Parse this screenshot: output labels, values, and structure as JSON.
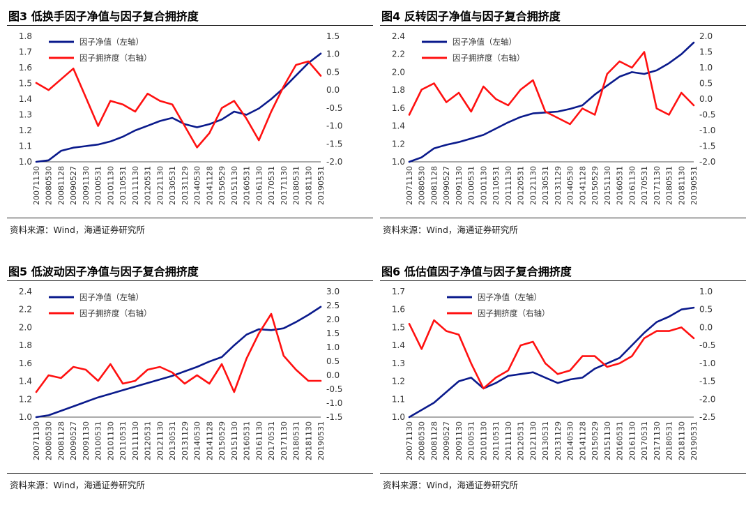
{
  "panels": [
    {
      "title": "图3  低换手因子净值与因子复合拥挤度",
      "source": "资料来源：Wind，海通证券研究所"
    },
    {
      "title": "图4  反转因子净值与因子复合拥挤度",
      "source": "资料来源：Wind，海通证券研究所"
    },
    {
      "title": "图5  低波动因子净值与因子复合拥挤度",
      "source": "资料来源：Wind，海通证券研究所"
    },
    {
      "title": "图6  低估值因子净值与因子复合拥挤度",
      "source": "资料来源：Wind，海通证券研究所"
    }
  ],
  "colors": {
    "net_value": "#0a1a8c",
    "crowding": "#ff1010"
  },
  "chart_data": [
    {
      "type": "line",
      "title": "图3  低换手因子净值与因子复合拥挤度",
      "x_tick_labels": [
        "20071130",
        "20080530",
        "20081128",
        "20090527",
        "20091130",
        "20100531",
        "20101130",
        "20110531",
        "20111130",
        "20120531",
        "20121130",
        "20130531",
        "20131129",
        "20140530",
        "20141128",
        "20150529",
        "20151130",
        "20160531",
        "20161130",
        "20170531",
        "20171130",
        "20180531",
        "20181130",
        "20190531"
      ],
      "left_axis": {
        "ylim": [
          1.0,
          1.8
        ],
        "ticks": [
          "1.0",
          "1.1",
          "1.2",
          "1.3",
          "1.4",
          "1.5",
          "1.6",
          "1.7",
          "1.8"
        ]
      },
      "right_axis": {
        "ylim": [
          -2.0,
          1.5
        ],
        "ticks": [
          "-2.0",
          "-1.5",
          "-1.0",
          "-0.5",
          "0.0",
          "0.5",
          "1.0",
          "1.5"
        ]
      },
      "legend_position": "top-left",
      "series": [
        {
          "name": "因子净值（左轴）",
          "axis": "left",
          "values": [
            1.0,
            1.01,
            1.07,
            1.09,
            1.1,
            1.11,
            1.13,
            1.16,
            1.2,
            1.23,
            1.26,
            1.28,
            1.24,
            1.22,
            1.24,
            1.27,
            1.32,
            1.3,
            1.34,
            1.4,
            1.47,
            1.55,
            1.63,
            1.69
          ]
        },
        {
          "name": "因子拥挤度（右轴）",
          "axis": "right",
          "values": [
            0.2,
            0.0,
            0.3,
            0.6,
            -0.2,
            -1.0,
            -0.3,
            -0.4,
            -0.6,
            -0.1,
            -0.3,
            -0.4,
            -1.0,
            -1.6,
            -1.2,
            -0.5,
            -0.3,
            -0.8,
            -1.4,
            -0.6,
            0.1,
            0.7,
            0.8,
            0.4
          ]
        }
      ]
    },
    {
      "type": "line",
      "title": "图4  反转因子净值与因子复合拥挤度",
      "x_tick_labels": [
        "20071130",
        "20080530",
        "20081128",
        "20090527",
        "20091130",
        "20100531",
        "20101130",
        "20110531",
        "20111130",
        "20120531",
        "20121130",
        "20130531",
        "20131129",
        "20140530",
        "20141128",
        "20150529",
        "20151130",
        "20160531",
        "20161130",
        "20170531",
        "20171130",
        "20180531",
        "20181130",
        "20190531"
      ],
      "left_axis": {
        "ylim": [
          1.0,
          2.4
        ],
        "ticks": [
          "1.0",
          "1.2",
          "1.4",
          "1.6",
          "1.8",
          "2.0",
          "2.2",
          "2.4"
        ]
      },
      "right_axis": {
        "ylim": [
          -2.0,
          2.0
        ],
        "ticks": [
          "-2.0",
          "-1.5",
          "-1.0",
          "-0.5",
          "0.0",
          "0.5",
          "1.0",
          "1.5",
          "2.0"
        ]
      },
      "legend_position": "top-left",
      "series": [
        {
          "name": "因子净值（左轴）",
          "axis": "left",
          "values": [
            1.0,
            1.05,
            1.15,
            1.19,
            1.22,
            1.26,
            1.3,
            1.37,
            1.44,
            1.5,
            1.54,
            1.55,
            1.56,
            1.59,
            1.63,
            1.75,
            1.85,
            1.95,
            2.0,
            1.98,
            2.02,
            2.1,
            2.2,
            2.33
          ]
        },
        {
          "name": "因子拥挤度（右轴）",
          "axis": "right",
          "values": [
            -0.5,
            0.3,
            0.5,
            -0.1,
            0.2,
            -0.4,
            0.4,
            0.0,
            -0.2,
            0.3,
            0.6,
            -0.4,
            -0.6,
            -0.8,
            -0.3,
            -0.5,
            0.8,
            1.2,
            1.0,
            1.5,
            -0.3,
            -0.5,
            0.2,
            -0.2
          ]
        }
      ]
    },
    {
      "type": "line",
      "title": "图5  低波动因子净值与因子复合拥挤度",
      "x_tick_labels": [
        "20071130",
        "20080530",
        "20081128",
        "20090527",
        "20091130",
        "20100531",
        "20101130",
        "20110531",
        "20111130",
        "20120531",
        "20121130",
        "20130531",
        "20131129",
        "20140530",
        "20141128",
        "20150529",
        "20151130",
        "20160531",
        "20161130",
        "20170531",
        "20171130",
        "20180531",
        "20181130",
        "20190531"
      ],
      "left_axis": {
        "ylim": [
          1.0,
          2.4
        ],
        "ticks": [
          "1.0",
          "1.2",
          "1.4",
          "1.6",
          "1.8",
          "2.0",
          "2.2",
          "2.4"
        ]
      },
      "right_axis": {
        "ylim": [
          -1.5,
          3.0
        ],
        "ticks": [
          "-1.5",
          "-1.0",
          "-0.5",
          "0.0",
          "0.5",
          "1.0",
          "1.5",
          "2.0",
          "2.5",
          "3.0"
        ]
      },
      "legend_position": "top-left",
      "series": [
        {
          "name": "因子净值（左轴）",
          "axis": "left",
          "values": [
            1.0,
            1.02,
            1.07,
            1.12,
            1.17,
            1.22,
            1.26,
            1.3,
            1.34,
            1.38,
            1.42,
            1.46,
            1.51,
            1.56,
            1.62,
            1.67,
            1.8,
            1.92,
            1.98,
            1.97,
            1.99,
            2.06,
            2.14,
            2.23
          ]
        },
        {
          "name": "因子拥挤度（右轴）",
          "axis": "right",
          "values": [
            -0.6,
            0.0,
            -0.1,
            0.3,
            0.2,
            -0.2,
            0.4,
            -0.3,
            -0.2,
            0.2,
            0.3,
            0.1,
            -0.3,
            0.0,
            -0.3,
            0.4,
            -0.6,
            0.6,
            1.5,
            2.2,
            0.7,
            0.2,
            -0.2,
            -0.2
          ]
        }
      ]
    },
    {
      "type": "line",
      "title": "图6  低估值因子净值与因子复合拥挤度",
      "x_tick_labels": [
        "20071130",
        "20080530",
        "20081128",
        "20090527",
        "20091130",
        "20100531",
        "20101130",
        "20110531",
        "20111130",
        "20120531",
        "20121130",
        "20130531",
        "20131129",
        "20140530",
        "20141128",
        "20150529",
        "20151130",
        "20160531",
        "20161130",
        "20170531",
        "20171130",
        "20180531",
        "20181130",
        "20190531"
      ],
      "left_axis": {
        "ylim": [
          1.0,
          1.7
        ],
        "ticks": [
          "1.0",
          "1.1",
          "1.2",
          "1.3",
          "1.4",
          "1.5",
          "1.6",
          "1.7"
        ]
      },
      "right_axis": {
        "ylim": [
          -2.5,
          1.0
        ],
        "ticks": [
          "-2.5",
          "-2.0",
          "-1.5",
          "-1.0",
          "-0.5",
          "0.0",
          "0.5",
          "1.0"
        ]
      },
      "legend_position": "top-center",
      "series": [
        {
          "name": "因子净值（左轴）",
          "axis": "left",
          "values": [
            1.0,
            1.04,
            1.08,
            1.14,
            1.2,
            1.22,
            1.16,
            1.19,
            1.23,
            1.24,
            1.25,
            1.22,
            1.19,
            1.21,
            1.22,
            1.27,
            1.3,
            1.33,
            1.4,
            1.47,
            1.53,
            1.56,
            1.6,
            1.61
          ]
        },
        {
          "name": "因子拥挤度（右轴）",
          "axis": "right",
          "values": [
            0.1,
            -0.6,
            0.2,
            -0.1,
            -0.2,
            -1.0,
            -1.7,
            -1.4,
            -1.2,
            -0.5,
            -0.4,
            -1.0,
            -1.3,
            -1.2,
            -0.8,
            -0.8,
            -1.1,
            -1.0,
            -0.8,
            -0.3,
            -0.1,
            -0.1,
            0.0,
            -0.3
          ]
        }
      ]
    }
  ]
}
